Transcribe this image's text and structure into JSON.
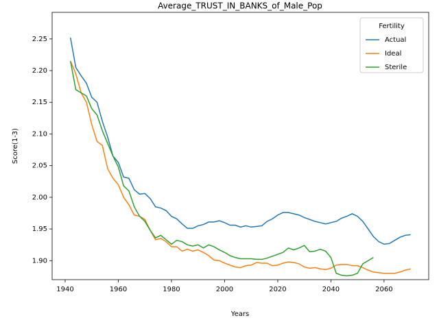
{
  "chart_data": {
    "type": "line",
    "title": "Average_TRUST_IN_BANKS_of_Male_Pop",
    "x_label": "Years",
    "y_label": "Score(1-3)",
    "legend_title": "Fertility",
    "legend_position": "upper right",
    "grid": false,
    "x": [
      1942,
      1944,
      1946,
      1948,
      1950,
      1952,
      1954,
      1956,
      1958,
      1960,
      1962,
      1964,
      1966,
      1968,
      1970,
      1972,
      1974,
      1976,
      1978,
      1980,
      1982,
      1984,
      1986,
      1988,
      1990,
      1992,
      1994,
      1996,
      1998,
      2000,
      2002,
      2004,
      2006,
      2008,
      2010,
      2012,
      2014,
      2016,
      2018,
      2020,
      2022,
      2024,
      2026,
      2028,
      2030,
      2032,
      2034,
      2036,
      2038,
      2040,
      2042,
      2044,
      2046,
      2048,
      2050,
      2052,
      2054,
      2056,
      2058,
      2060,
      2062,
      2064,
      2066,
      2068,
      2070
    ],
    "series": [
      {
        "name": "Actual",
        "color": "#1f77b4",
        "values": [
          2.252,
          2.205,
          2.192,
          2.18,
          2.158,
          2.15,
          2.12,
          2.095,
          2.065,
          2.055,
          2.032,
          2.03,
          2.012,
          2.005,
          2.006,
          1.998,
          1.985,
          1.983,
          1.979,
          1.97,
          1.966,
          1.958,
          1.951,
          1.951,
          1.955,
          1.957,
          1.961,
          1.961,
          1.963,
          1.96,
          1.956,
          1.956,
          1.953,
          1.955,
          1.953,
          1.954,
          1.955,
          1.962,
          1.966,
          1.972,
          1.976,
          1.976,
          1.974,
          1.972,
          1.968,
          1.965,
          1.962,
          1.96,
          1.958,
          1.96,
          1.962,
          1.967,
          1.97,
          1.974,
          1.97,
          1.962,
          1.95,
          1.938,
          1.93,
          1.926,
          1.927,
          1.932,
          1.937,
          1.94,
          1.941
        ]
      },
      {
        "name": "Ideal",
        "color": "#ff7f0e",
        "values": [
          2.215,
          2.195,
          2.165,
          2.15,
          2.115,
          2.088,
          2.082,
          2.045,
          2.03,
          2.02,
          2.0,
          1.988,
          1.972,
          1.97,
          1.965,
          1.948,
          1.933,
          1.935,
          1.93,
          1.922,
          1.922,
          1.915,
          1.918,
          1.915,
          1.917,
          1.913,
          1.908,
          1.901,
          1.9,
          1.896,
          1.893,
          1.89,
          1.889,
          1.892,
          1.893,
          1.897,
          1.896,
          1.896,
          1.892,
          1.893,
          1.896,
          1.898,
          1.897,
          1.895,
          1.89,
          1.888,
          1.889,
          1.887,
          1.886,
          1.888,
          1.893,
          1.894,
          1.894,
          1.892,
          1.892,
          1.889,
          1.885,
          1.882,
          1.881,
          1.88,
          1.88,
          1.88,
          1.882,
          1.885,
          1.887
        ]
      },
      {
        "name": "Sterile",
        "color": "#2ca02c",
        "values": [
          2.215,
          2.17,
          2.165,
          2.16,
          2.14,
          2.13,
          2.105,
          2.085,
          2.065,
          2.048,
          2.018,
          2.01,
          1.985,
          1.97,
          1.962,
          1.948,
          1.936,
          1.94,
          1.933,
          1.926,
          1.932,
          1.93,
          1.925,
          1.923,
          1.925,
          1.92,
          1.925,
          1.922,
          1.917,
          1.913,
          1.908,
          1.905,
          1.903,
          1.903,
          1.903,
          1.902,
          1.902,
          1.904,
          1.907,
          1.91,
          1.913,
          1.92,
          1.917,
          1.92,
          1.924,
          1.914,
          1.915,
          1.918,
          1.915,
          1.905,
          1.88,
          1.877,
          1.876,
          1.877,
          1.88,
          1.895,
          1.9,
          1.905,
          null,
          null,
          null,
          null,
          null,
          null,
          null
        ]
      }
    ],
    "xlim": [
      1935.1,
      2076.8
    ],
    "xticks": [
      1940,
      1960,
      1980,
      2000,
      2020,
      2040,
      2060
    ],
    "ylim": [
      1.87,
      2.292
    ],
    "yticks": [
      {
        "value": 1.9,
        "label": "1.90"
      },
      1.95,
      {
        "value": 2.0,
        "label": "2.00"
      },
      2.05,
      {
        "value": 2.1,
        "label": "2.10"
      },
      2.15,
      {
        "value": 2.2,
        "label": "2.20"
      },
      2.25
    ]
  }
}
